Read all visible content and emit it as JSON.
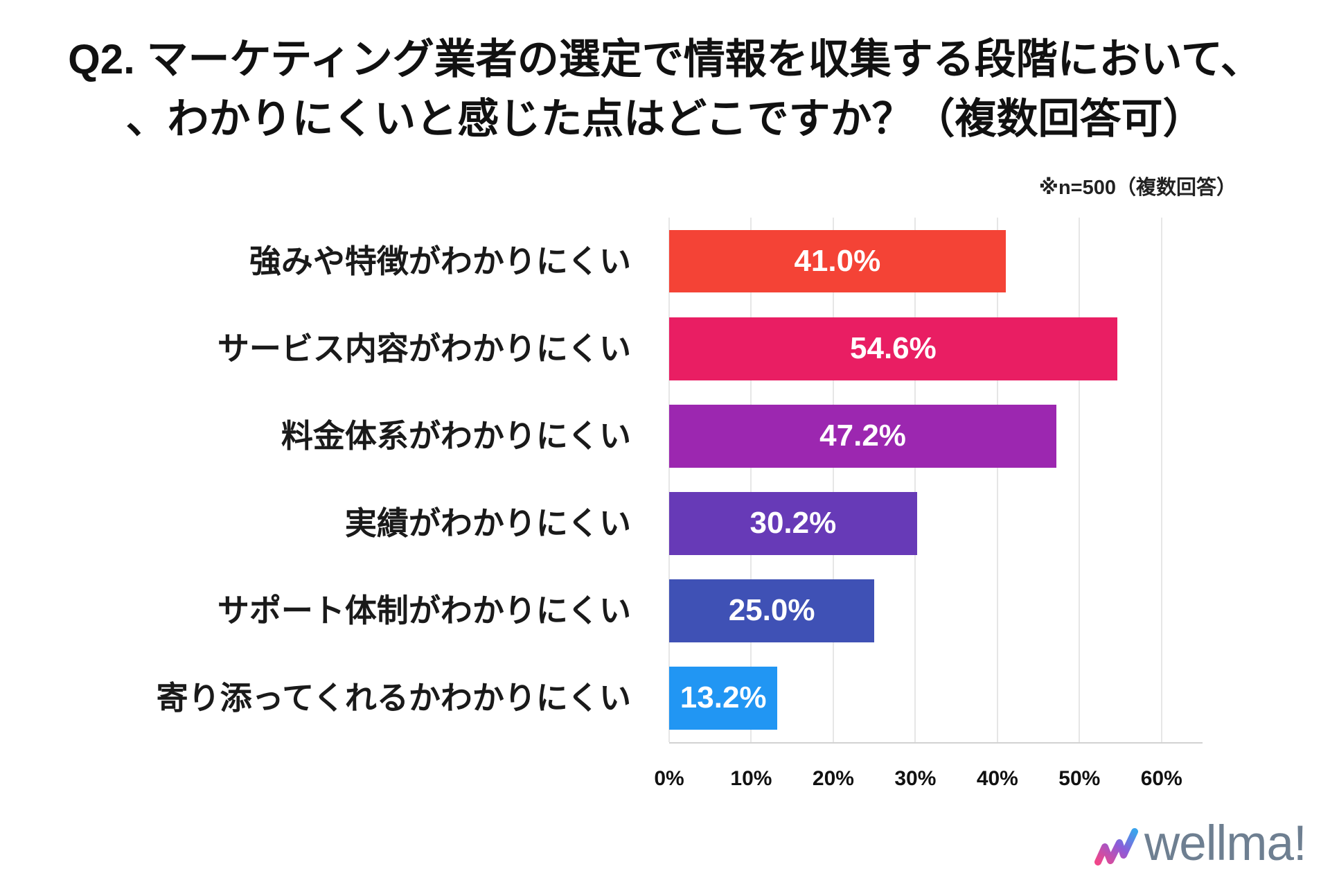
{
  "chart_data": {
    "type": "bar",
    "title": [
      "Q2. マーケティング業者の選定で情報を収集する段階において、",
      "、わかりにくいと感じた点はどこですか？（複数回答可）"
    ],
    "note": "※n=500（複数回答）",
    "categories": [
      "強みや特徴がわかりにくい",
      "サービス内容がわかりにくい",
      "料金体系がわかりにくい",
      "実績がわかりにくい",
      "サポート体制がわかりにくい",
      "寄り添ってくれるかわかりにくい"
    ],
    "values": [
      41.0,
      54.6,
      47.2,
      30.2,
      25.0,
      13.2
    ],
    "value_labels": [
      "41.0%",
      "54.6%",
      "47.2%",
      "30.2%",
      "25.0%",
      "13.2%"
    ],
    "xlim": [
      0,
      65
    ],
    "xticks": [
      0,
      10,
      20,
      30,
      40,
      50,
      60
    ],
    "xtick_labels": [
      "0%",
      "10%",
      "20%",
      "30%",
      "40%",
      "50%",
      "60%"
    ],
    "xlabel": "",
    "ylabel": "",
    "grid": true,
    "colors": [
      "#F44336",
      "#E91E63",
      "#9C27B0",
      "#673AB7",
      "#3F51B5",
      "#2196F3"
    ],
    "value_label_color": "#FFFFFF"
  },
  "logo": {
    "text": "wellma!",
    "color": "#6E7F91",
    "icon": "wellma-w-logo-icon",
    "gradient": [
      "#F0468A",
      "#8E5BD8",
      "#3BA3EC"
    ]
  }
}
